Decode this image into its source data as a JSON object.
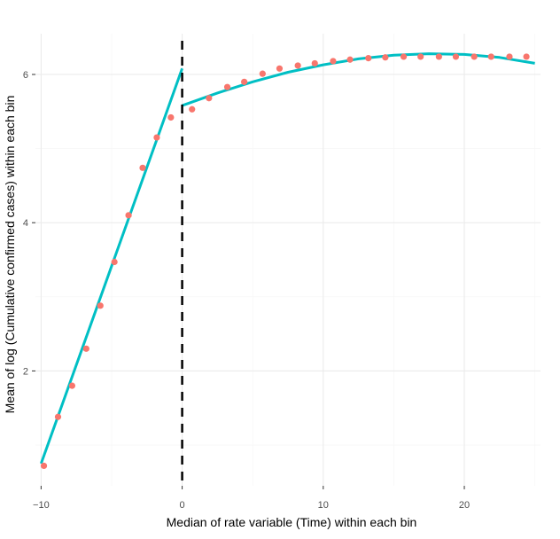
{
  "chart_data": {
    "type": "scatter",
    "xlabel": "Median of rate variable (Time) within each bin",
    "ylabel": "Mean of log (Cumulative confirmed cases) within each bin",
    "xlim": [
      -10.4,
      25.4
    ],
    "ylim": [
      0.45,
      6.55
    ],
    "x_ticks": [
      -10,
      0,
      10,
      20
    ],
    "x_tick_labels": [
      "−10",
      "0",
      "10",
      "20"
    ],
    "y_ticks": [
      2,
      4,
      6
    ],
    "y_tick_labels": [
      "2",
      "4",
      "6"
    ],
    "grid": true,
    "cutoff": 0,
    "colors": {
      "points": "#f8766d",
      "fit": "#00bfc4",
      "cutoff": "#000000",
      "grid_major": "#ebebeb",
      "grid_minor": "#f5f5f5"
    },
    "points": {
      "x": [
        -9.8,
        -8.8,
        -7.8,
        -6.8,
        -5.8,
        -4.8,
        -3.8,
        -2.8,
        -1.8,
        -0.8,
        0.7,
        1.9,
        3.2,
        4.4,
        5.7,
        6.9,
        8.2,
        9.4,
        10.7,
        11.9,
        13.2,
        14.4,
        15.7,
        16.9,
        18.2,
        19.4,
        20.7,
        21.9,
        23.2,
        24.4
      ],
      "y": [
        0.72,
        1.38,
        1.8,
        2.3,
        2.88,
        3.47,
        4.1,
        4.74,
        5.15,
        5.42,
        5.53,
        5.68,
        5.83,
        5.9,
        6.01,
        6.08,
        6.12,
        6.15,
        6.18,
        6.2,
        6.22,
        6.23,
        6.24,
        6.24,
        6.24,
        6.24,
        6.24,
        6.24,
        6.24,
        6.24
      ]
    },
    "fit_left": {
      "x": [
        -10,
        0
      ],
      "y": [
        0.75,
        6.08
      ]
    },
    "fit_right": {
      "x": [
        0,
        2.5,
        5,
        7.5,
        10,
        12.5,
        15,
        17.5,
        20,
        22.5,
        25
      ],
      "y": [
        5.58,
        5.75,
        5.9,
        6.03,
        6.13,
        6.21,
        6.26,
        6.28,
        6.27,
        6.23,
        6.15
      ]
    }
  }
}
